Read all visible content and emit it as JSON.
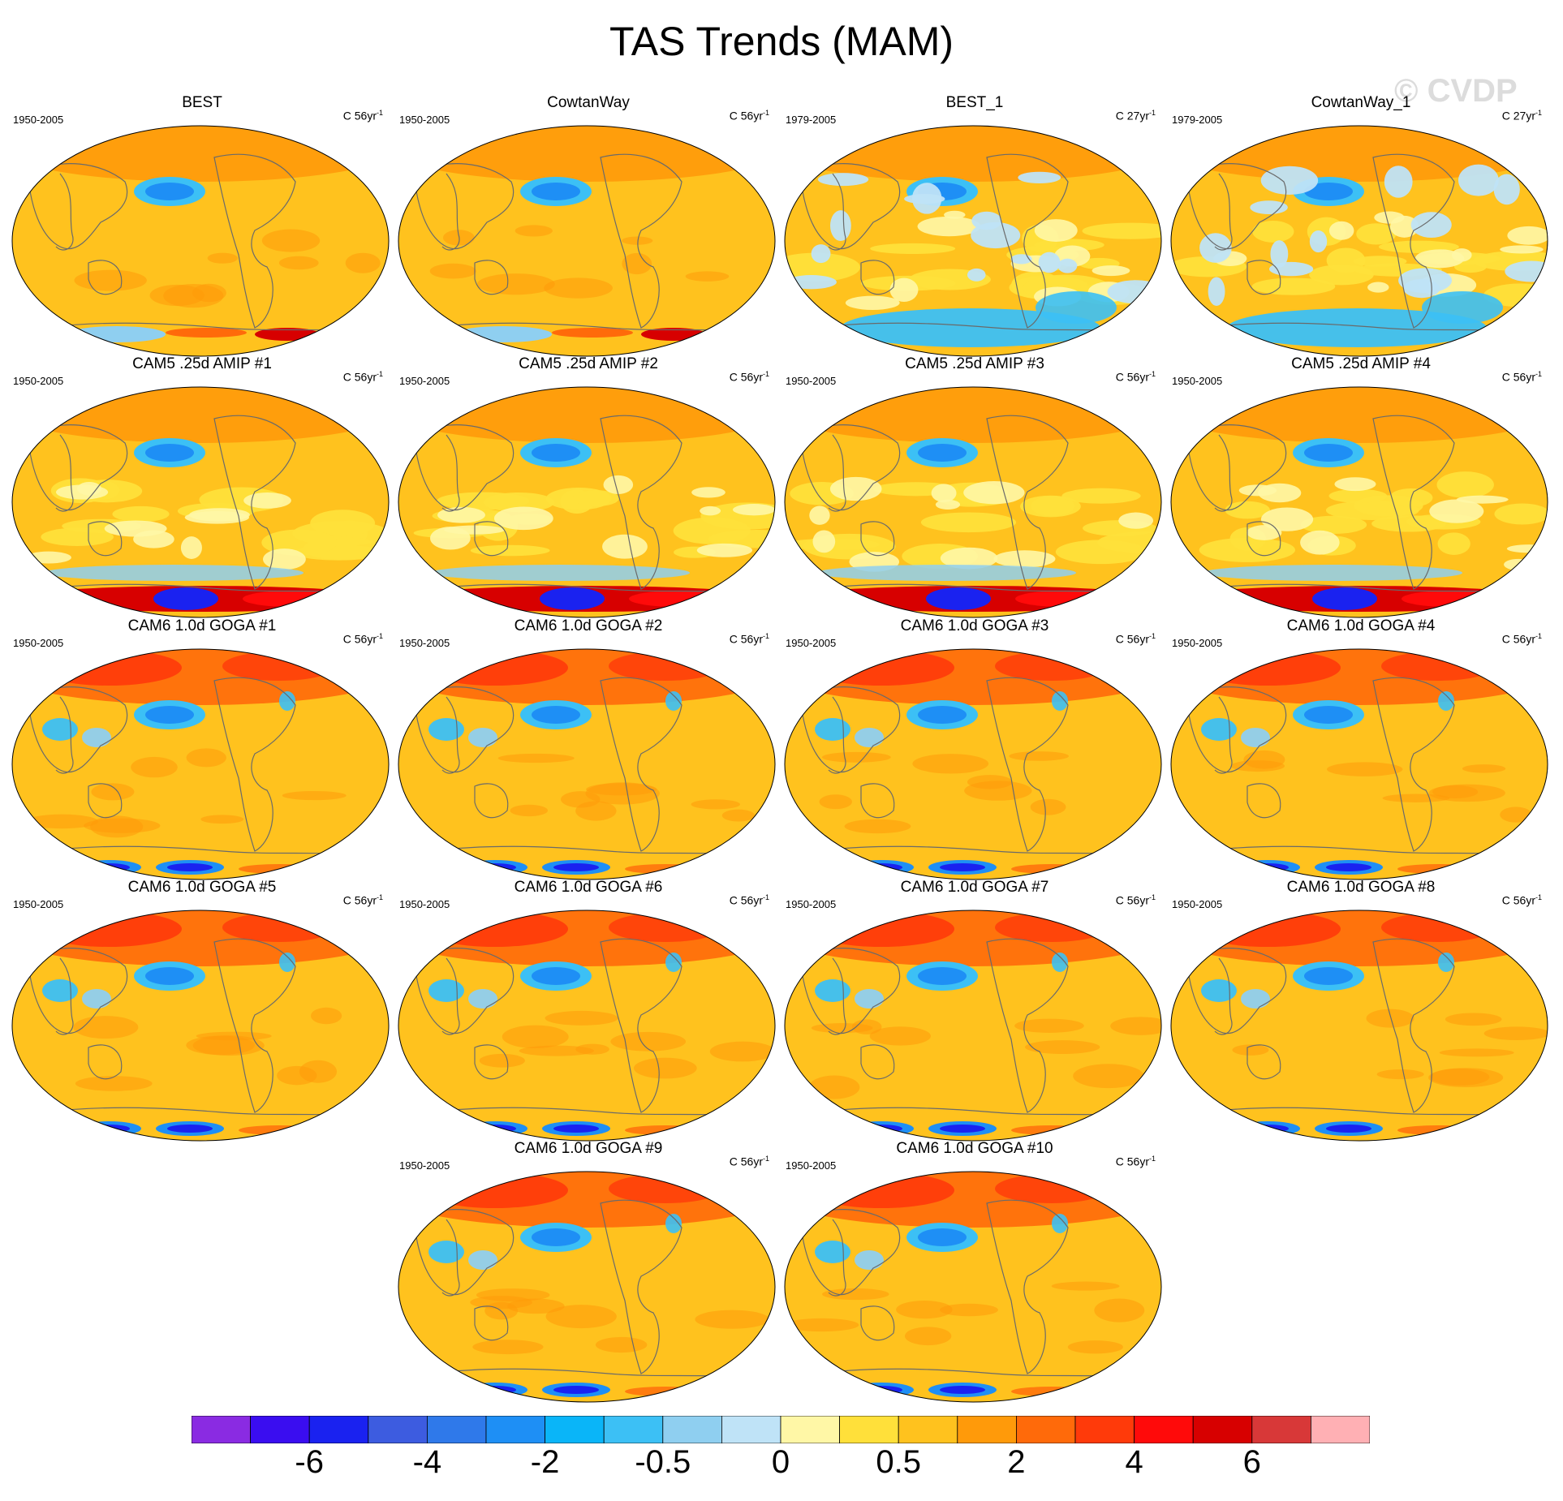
{
  "title": "TAS Trends (MAM)",
  "watermark": "© CVDP",
  "panels": [
    {
      "title": "BEST",
      "period": "1950-2005",
      "units_prefix": "C 56yr",
      "units_exp": "-1",
      "pattern": "obs56"
    },
    {
      "title": "CowtanWay",
      "period": "1950-2005",
      "units_prefix": "C 56yr",
      "units_exp": "-1",
      "pattern": "obs56"
    },
    {
      "title": "BEST_1",
      "period": "1979-2005",
      "units_prefix": "C 27yr",
      "units_exp": "-1",
      "pattern": "obs27"
    },
    {
      "title": "CowtanWay_1",
      "period": "1979-2005",
      "units_prefix": "C 27yr",
      "units_exp": "-1",
      "pattern": "obs27"
    },
    {
      "title": "CAM5 .25d AMIP #1",
      "period": "1950-2005",
      "units_prefix": "C 56yr",
      "units_exp": "-1",
      "pattern": "amip"
    },
    {
      "title": "CAM5 .25d AMIP #2",
      "period": "1950-2005",
      "units_prefix": "C 56yr",
      "units_exp": "-1",
      "pattern": "amip"
    },
    {
      "title": "CAM5 .25d AMIP #3",
      "period": "1950-2005",
      "units_prefix": "C 56yr",
      "units_exp": "-1",
      "pattern": "amip"
    },
    {
      "title": "CAM5 .25d AMIP #4",
      "period": "1950-2005",
      "units_prefix": "C 56yr",
      "units_exp": "-1",
      "pattern": "amip"
    },
    {
      "title": "CAM6 1.0d GOGA #1",
      "period": "1950-2005",
      "units_prefix": "C 56yr",
      "units_exp": "-1",
      "pattern": "goga"
    },
    {
      "title": "CAM6 1.0d GOGA #2",
      "period": "1950-2005",
      "units_prefix": "C 56yr",
      "units_exp": "-1",
      "pattern": "goga"
    },
    {
      "title": "CAM6 1.0d GOGA #3",
      "period": "1950-2005",
      "units_prefix": "C 56yr",
      "units_exp": "-1",
      "pattern": "goga"
    },
    {
      "title": "CAM6 1.0d GOGA #4",
      "period": "1950-2005",
      "units_prefix": "C 56yr",
      "units_exp": "-1",
      "pattern": "goga"
    },
    {
      "title": "CAM6 1.0d GOGA #5",
      "period": "1950-2005",
      "units_prefix": "C 56yr",
      "units_exp": "-1",
      "pattern": "goga"
    },
    {
      "title": "CAM6 1.0d GOGA #6",
      "period": "1950-2005",
      "units_prefix": "C 56yr",
      "units_exp": "-1",
      "pattern": "goga"
    },
    {
      "title": "CAM6 1.0d GOGA #7",
      "period": "1950-2005",
      "units_prefix": "C 56yr",
      "units_exp": "-1",
      "pattern": "goga"
    },
    {
      "title": "CAM6 1.0d GOGA #8",
      "period": "1950-2005",
      "units_prefix": "C 56yr",
      "units_exp": "-1",
      "pattern": "goga"
    },
    {
      "title": "CAM6 1.0d GOGA #9",
      "period": "1950-2005",
      "units_prefix": "C 56yr",
      "units_exp": "-1",
      "pattern": "goga"
    },
    {
      "title": "CAM6 1.0d GOGA #10",
      "period": "1950-2005",
      "units_prefix": "C 56yr",
      "units_exp": "-1",
      "pattern": "goga"
    }
  ],
  "colorbar": {
    "colors": [
      "#8a2be2",
      "#3a0df0",
      "#1a22f0",
      "#3d5ce0",
      "#2f79ea",
      "#1e8ff5",
      "#0ab5f8",
      "#3cc0f5",
      "#8fcff0",
      "#bfe3f7",
      "#fff7a6",
      "#ffe03a",
      "#ffc21e",
      "#ff9a0a",
      "#ff6a0a",
      "#ff3a0a",
      "#ff0a0a",
      "#d70000",
      "#d83838",
      "#ffb0b4"
    ],
    "labels": [
      "-6",
      "-4",
      "-2",
      "-0.5",
      "0",
      "0.5",
      "2",
      "4",
      "6"
    ]
  }
}
